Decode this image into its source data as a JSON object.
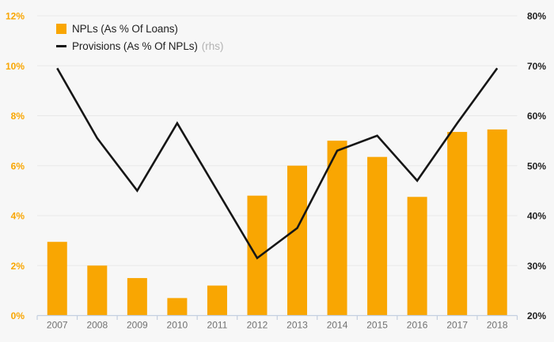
{
  "chart_data": {
    "type": "combo",
    "categories": [
      "2007",
      "2008",
      "2009",
      "2010",
      "2011",
      "2012",
      "2013",
      "2014",
      "2015",
      "2016",
      "2017",
      "2018"
    ],
    "series": [
      {
        "name": "NPLs (As % Of Loans)",
        "type": "bar",
        "axis": "left",
        "color": "#f9a602",
        "values": [
          2.95,
          2.0,
          1.5,
          0.7,
          1.2,
          4.8,
          6.0,
          7.0,
          6.35,
          4.75,
          7.35,
          7.45
        ]
      },
      {
        "name": "Provisions (As % Of NPLs)",
        "type": "line",
        "axis": "right",
        "color": "#161616",
        "values": [
          69.5,
          55.5,
          45,
          58.5,
          45,
          31.5,
          37.5,
          53,
          56,
          47,
          58.5,
          69.5
        ]
      }
    ],
    "left_axis": {
      "min": 0,
      "max": 12,
      "tick_values": [
        0,
        2,
        4,
        6,
        8,
        10,
        12
      ],
      "unit": "%"
    },
    "right_axis": {
      "min": 20,
      "max": 80,
      "tick_values": [
        20,
        30,
        40,
        50,
        60,
        70,
        80
      ],
      "unit": "%",
      "note": "rhs"
    },
    "grid": true,
    "legend_position": "top-left",
    "colors": {
      "bar": "#f9a602",
      "line": "#161616",
      "grid": "#e8e8e8",
      "axis": "#c4cfe0",
      "left_label": "#f9a602",
      "right_label": "#1f1f1f",
      "x_label": "#707070",
      "rhs_note": "#b3b3b3",
      "background": "#f7f7f7"
    }
  },
  "legend": {
    "items": [
      {
        "label": "NPLs (As % Of Loans)",
        "suffix": ""
      },
      {
        "label": "Provisions (As % Of NPLs)",
        "suffix": "(rhs)"
      }
    ]
  }
}
